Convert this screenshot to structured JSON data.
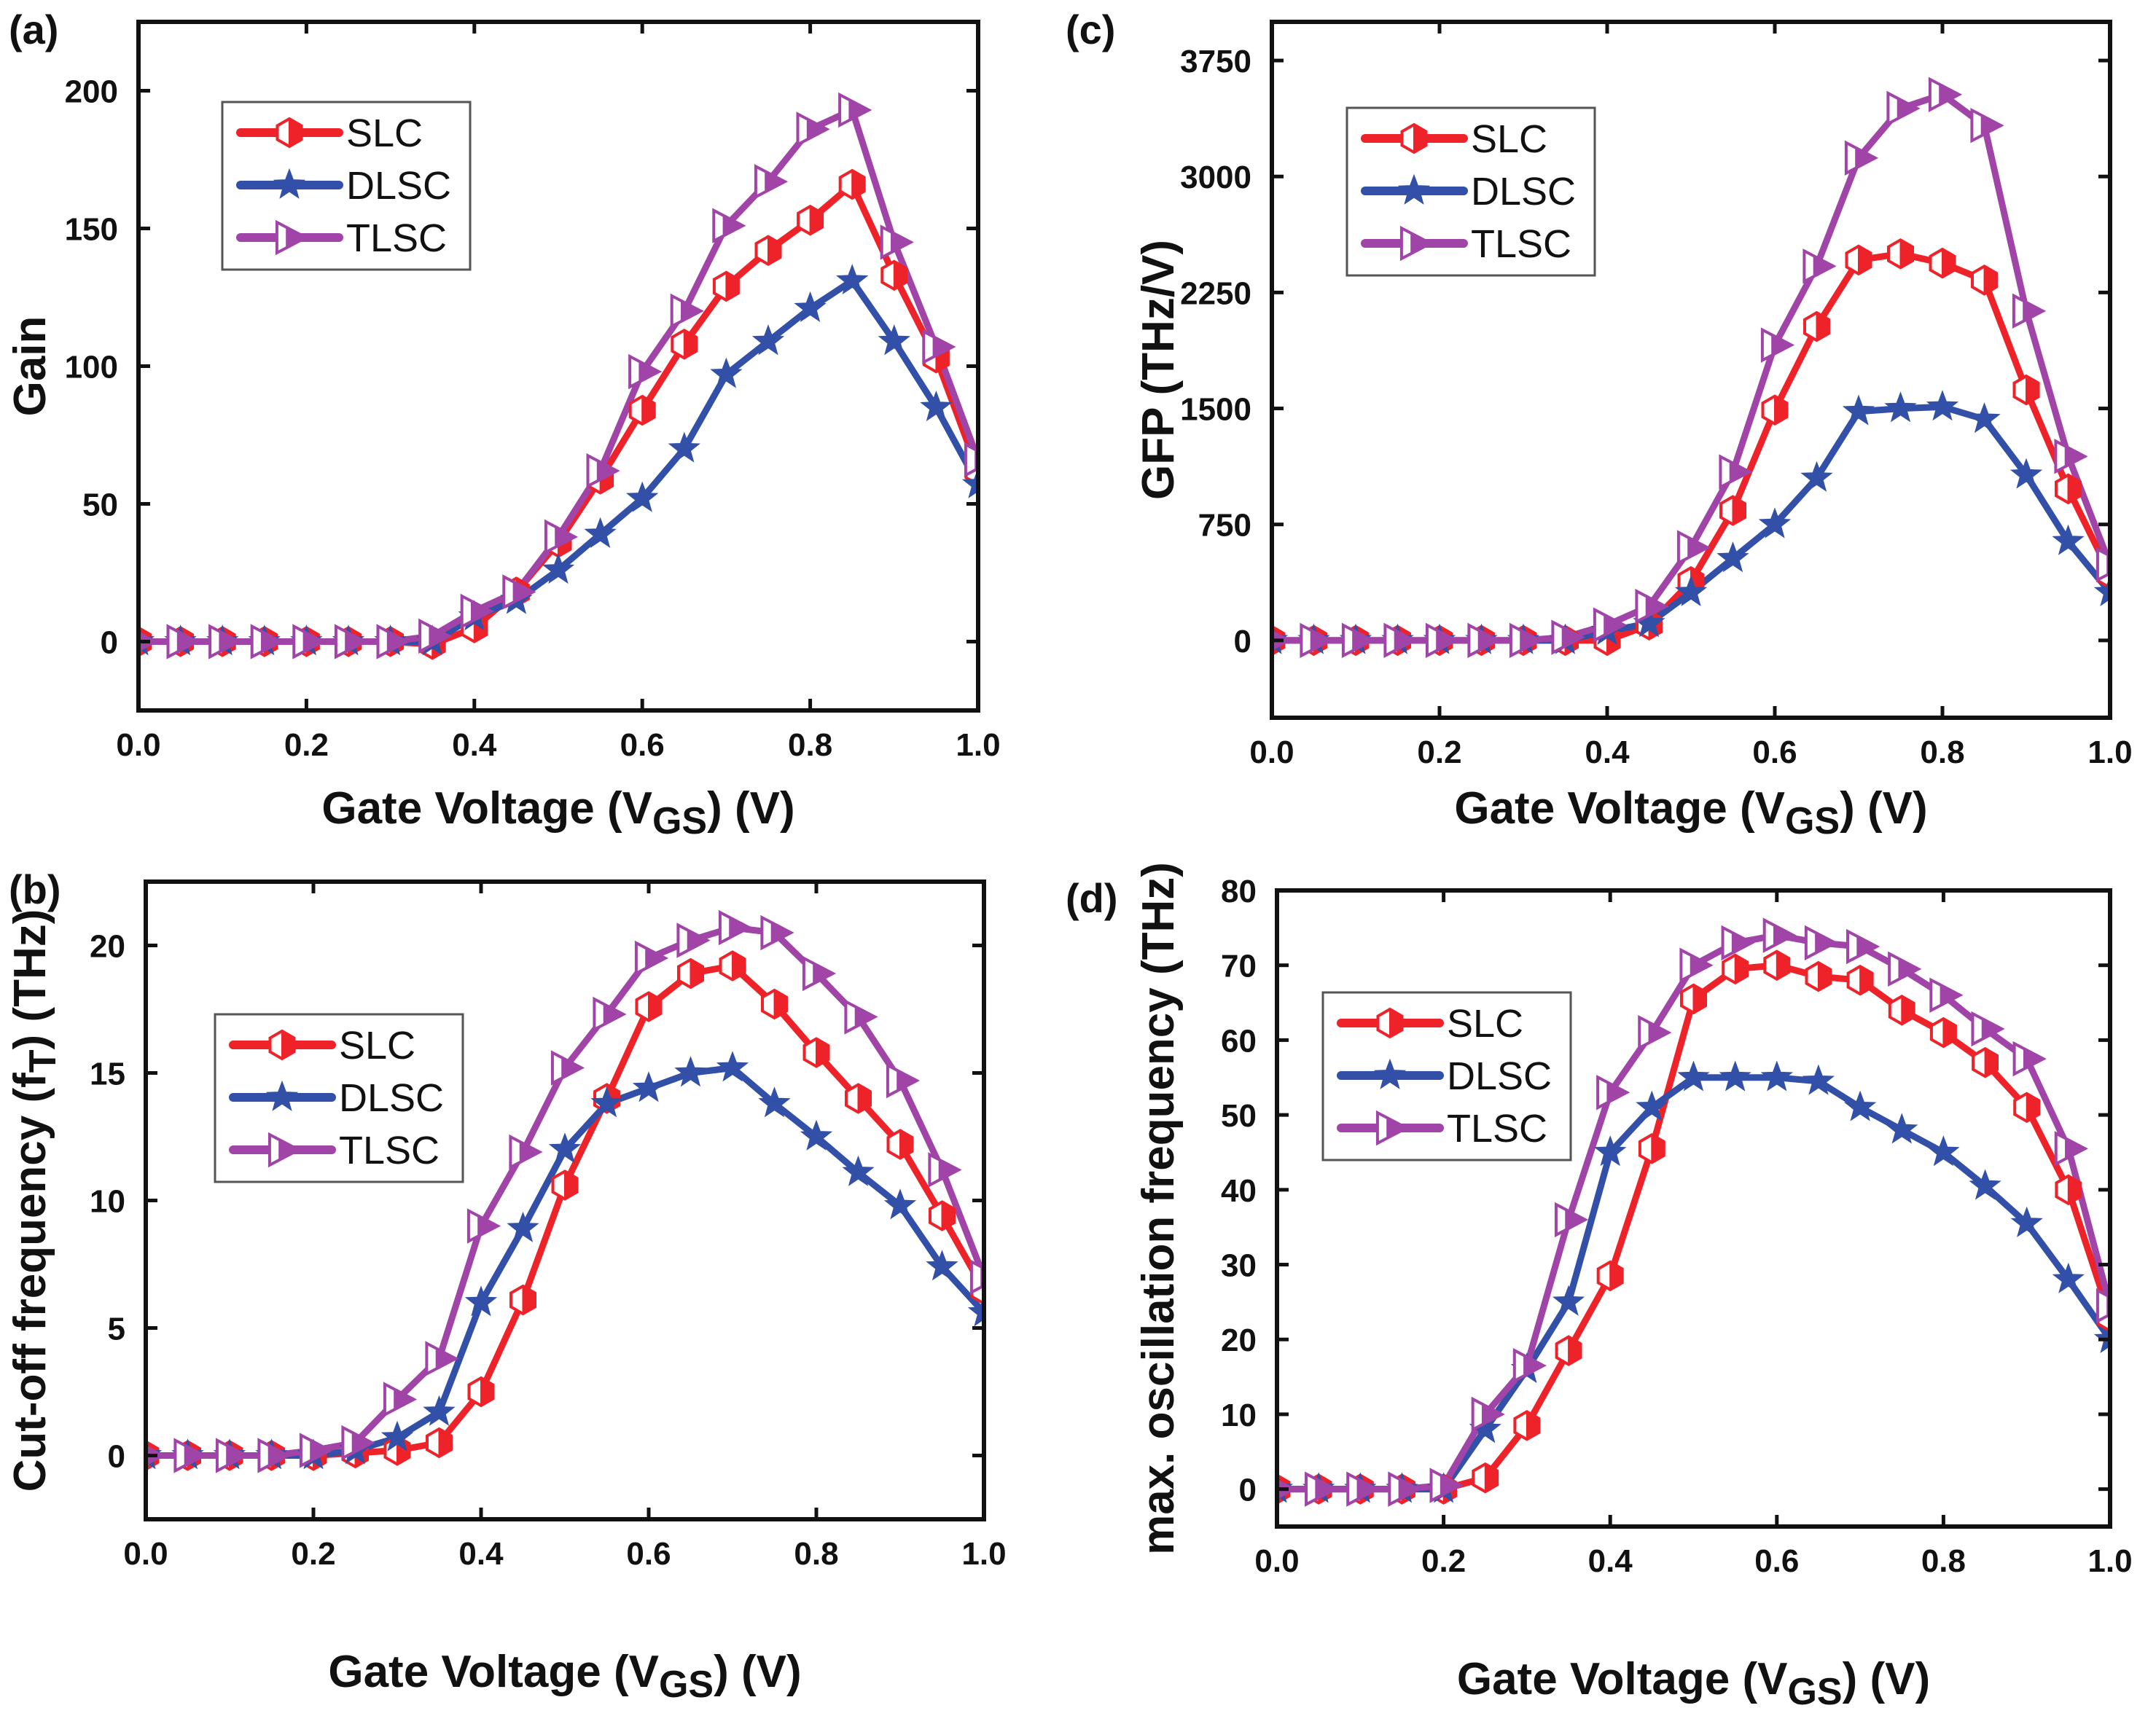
{
  "chart_data": [
    {
      "panel": "(a)",
      "type": "line",
      "title": "",
      "xlabel": "Gate Voltage (V",
      "xlabel_sub": "GS",
      "xlabel_tail": ") (V)",
      "ylabel": "Gain",
      "ylabel_sub": "",
      "ylabel_tail": "",
      "xlim": [
        0.0,
        1.0
      ],
      "ylim": [
        -25,
        225
      ],
      "xticks": [
        "0.0",
        "0.2",
        "0.4",
        "0.6",
        "0.8",
        "1.0"
      ],
      "yticks": [
        "0",
        "50",
        "100",
        "150",
        "200"
      ],
      "ytick_values": [
        0,
        50,
        100,
        150,
        200
      ],
      "legend_position": "top-left",
      "x": [
        0.0,
        0.05,
        0.1,
        0.15,
        0.2,
        0.25,
        0.3,
        0.35,
        0.4,
        0.45,
        0.5,
        0.55,
        0.6,
        0.65,
        0.7,
        0.75,
        0.8,
        0.85,
        0.9,
        0.95,
        1.0
      ],
      "series": [
        {
          "name": "SLC",
          "values": [
            0,
            0,
            0,
            0,
            0,
            0,
            0,
            -1,
            5,
            18,
            36,
            59,
            84,
            108,
            129,
            142,
            153,
            166,
            133,
            103,
            62
          ]
        },
        {
          "name": "DLSC",
          "values": [
            0,
            0,
            0,
            0,
            0,
            0,
            0,
            0,
            9,
            15,
            26,
            39,
            52,
            70,
            97,
            109,
            121,
            131,
            109,
            85,
            57
          ]
        },
        {
          "name": "TLSC",
          "values": [
            0,
            0,
            0,
            0,
            0,
            0,
            0,
            2,
            11,
            18,
            38,
            62,
            98,
            120,
            151,
            167,
            186,
            193,
            145,
            107,
            66
          ]
        }
      ]
    },
    {
      "panel": "(b)",
      "type": "line",
      "title": "",
      "xlabel": "Gate Voltage (V",
      "xlabel_sub": "GS",
      "xlabel_tail": ") (V)",
      "ylabel": "Cut-off frequency (f",
      "ylabel_sub": "T",
      "ylabel_tail": ") (THz)",
      "xlim": [
        0.0,
        1.0
      ],
      "ylim": [
        -2.5,
        22.5
      ],
      "xticks": [
        "0.0",
        "0.2",
        "0.4",
        "0.6",
        "0.8",
        "1.0"
      ],
      "yticks": [
        "0",
        "5",
        "10",
        "15",
        "20"
      ],
      "ytick_values": [
        0,
        5,
        10,
        15,
        20
      ],
      "legend_position": "top-left",
      "x": [
        0.0,
        0.05,
        0.1,
        0.15,
        0.2,
        0.25,
        0.3,
        0.35,
        0.4,
        0.45,
        0.5,
        0.55,
        0.6,
        0.65,
        0.7,
        0.75,
        0.8,
        0.85,
        0.9,
        0.95,
        1.0
      ],
      "series": [
        {
          "name": "SLC",
          "values": [
            0,
            0,
            0,
            0,
            0,
            0.1,
            0.2,
            0.5,
            2.5,
            6.1,
            10.6,
            14.0,
            17.6,
            18.9,
            19.2,
            17.7,
            15.8,
            14.0,
            12.2,
            9.4,
            6.5
          ]
        },
        {
          "name": "DLSC",
          "values": [
            0,
            0,
            0,
            0,
            0,
            0.2,
            0.7,
            1.7,
            6.0,
            8.9,
            12.0,
            13.8,
            14.4,
            15.0,
            15.2,
            13.8,
            12.5,
            11.1,
            9.8,
            7.4,
            5.6
          ]
        },
        {
          "name": "TLSC",
          "values": [
            0,
            0,
            0,
            0,
            0.2,
            0.5,
            2.2,
            3.8,
            9.0,
            11.9,
            15.2,
            17.3,
            19.5,
            20.2,
            20.7,
            20.5,
            18.9,
            17.2,
            14.7,
            11.2,
            7.0
          ]
        }
      ]
    },
    {
      "panel": "(c)",
      "type": "line",
      "title": "",
      "xlabel": "Gate Voltage (V",
      "xlabel_sub": "GS",
      "xlabel_tail": ") (V)",
      "ylabel": "GFP (THz/V)",
      "ylabel_sub": "",
      "ylabel_tail": "",
      "xlim": [
        0.0,
        1.0
      ],
      "ylim": [
        -500,
        4000
      ],
      "xticks": [
        "0.0",
        "0.2",
        "0.4",
        "0.6",
        "0.8",
        "1.0"
      ],
      "yticks": [
        "0",
        "750",
        "1500",
        "2250",
        "3000",
        "3750"
      ],
      "ytick_values": [
        0,
        750,
        1500,
        2250,
        3000,
        3750
      ],
      "legend_position": "top-left",
      "x": [
        0.0,
        0.05,
        0.1,
        0.15,
        0.2,
        0.25,
        0.3,
        0.35,
        0.4,
        0.45,
        0.5,
        0.55,
        0.6,
        0.65,
        0.7,
        0.75,
        0.8,
        0.85,
        0.9,
        0.95,
        1.0
      ],
      "series": [
        {
          "name": "SLC",
          "values": [
            0,
            0,
            0,
            0,
            0,
            0,
            0,
            0,
            0,
            100,
            380,
            840,
            1490,
            2030,
            2460,
            2500,
            2440,
            2330,
            1620,
            980,
            430
          ]
        },
        {
          "name": "DLSC",
          "values": [
            0,
            0,
            0,
            0,
            0,
            0,
            0,
            0,
            60,
            110,
            310,
            530,
            750,
            1050,
            1480,
            1500,
            1510,
            1430,
            1070,
            640,
            310
          ]
        },
        {
          "name": "TLSC",
          "values": [
            0,
            0,
            0,
            0,
            0,
            0,
            0,
            20,
            100,
            220,
            600,
            1090,
            1910,
            2420,
            3120,
            3440,
            3530,
            3330,
            2130,
            1190,
            490
          ]
        }
      ]
    },
    {
      "panel": "(d)",
      "type": "line",
      "title": "",
      "xlabel": "Gate Voltage (V",
      "xlabel_sub": "GS",
      "xlabel_tail": ") (V)",
      "ylabel": "max. oscillation frequency (THz)",
      "ylabel_sub": "",
      "ylabel_tail": "",
      "xlim": [
        0.0,
        1.0
      ],
      "ylim": [
        -5,
        80
      ],
      "xticks": [
        "0.0",
        "0.2",
        "0.4",
        "0.6",
        "0.8",
        "1.0"
      ],
      "yticks": [
        "0",
        "10",
        "20",
        "30",
        "40",
        "50",
        "60",
        "70",
        "80"
      ],
      "ytick_values": [
        0,
        10,
        20,
        30,
        40,
        50,
        60,
        70,
        80
      ],
      "legend_position": "top-left",
      "x": [
        0.0,
        0.05,
        0.1,
        0.15,
        0.2,
        0.25,
        0.3,
        0.35,
        0.4,
        0.45,
        0.5,
        0.55,
        0.6,
        0.65,
        0.7,
        0.75,
        0.8,
        0.85,
        0.9,
        0.95,
        1.0
      ],
      "series": [
        {
          "name": "SLC",
          "values": [
            0,
            0,
            0,
            0,
            0,
            1.5,
            8.5,
            18.5,
            28.5,
            45.5,
            65.5,
            69.5,
            70,
            68.5,
            68,
            64,
            61,
            57,
            51,
            40,
            23
          ]
        },
        {
          "name": "DLSC",
          "values": [
            0,
            0,
            0,
            0,
            0,
            8,
            16,
            25,
            45,
            51,
            55,
            55,
            55,
            54.5,
            51,
            48,
            45,
            40.5,
            35.5,
            28,
            20
          ]
        },
        {
          "name": "TLSC",
          "values": [
            0,
            0,
            0,
            0,
            0.5,
            10,
            16.5,
            36,
            53,
            61,
            70,
            73,
            74,
            73,
            72.5,
            69.5,
            66,
            61.5,
            57.5,
            45.5,
            24.5
          ]
        }
      ]
    }
  ],
  "series_styles": {
    "SLC": {
      "color": "#ee2229",
      "marker": "hexagon-half-filled"
    },
    "DLSC": {
      "color": "#3350a8",
      "marker": "star"
    },
    "TLSC": {
      "color": "#a044a8",
      "marker": "right-triangle-half-filled"
    }
  }
}
